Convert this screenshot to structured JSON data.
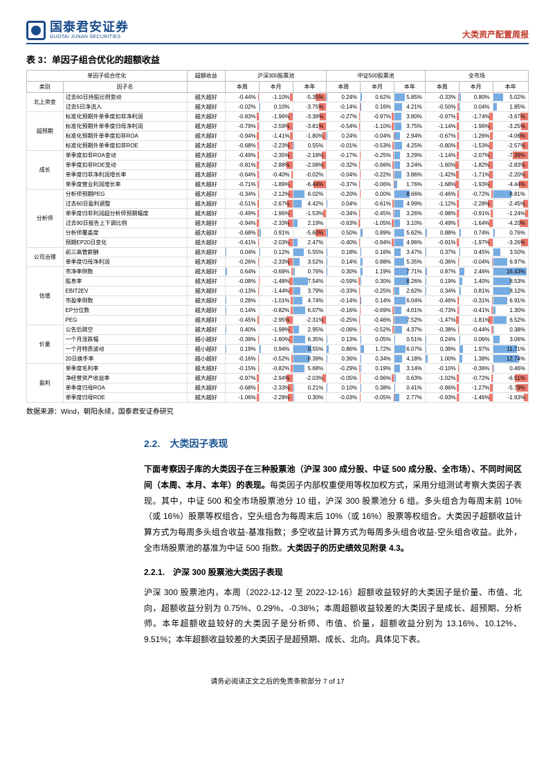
{
  "header": {
    "logo_cn": "国泰君安证券",
    "logo_en": "GUOTAI JUNAN SECURITIES",
    "report_type": "大类资产配置周报"
  },
  "table": {
    "title": "表 3：单因子组合优化的超额收益",
    "head1": [
      "单因子组合优化",
      "超额收益",
      "沪深300股票池",
      "中证500股票池",
      "全市场"
    ],
    "head2": [
      "类别",
      "因子名",
      "",
      "本周",
      "本月",
      "本年",
      "本周",
      "本月",
      "本年",
      "本周",
      "本月",
      "本年"
    ],
    "source": "数据来源：Wind，朝阳永续，国泰君安证券研究",
    "max_abs": 17,
    "cats": [
      {
        "name": "北上资金",
        "rows": [
          {
            "n": "过去60日持股比例变动",
            "d": "越大越好",
            "v": [
              -0.44,
              -1.1,
              -5.35,
              0.24,
              0.62,
              5.85,
              -0.33,
              0.8,
              5.02
            ]
          },
          {
            "n": "过去5日净流入",
            "d": "越大越好",
            "v": [
              -0.02,
              0.1,
              -3.75,
              -0.14,
              0.16,
              4.21,
              -0.5,
              0.04,
              1.85
            ]
          }
        ]
      },
      {
        "name": "超预期",
        "rows": [
          {
            "n": "标准化预期外单季度扣非净利润",
            "d": "越大越好",
            "v": [
              -0.83,
              -1.96,
              -3.38,
              -0.27,
              -0.97,
              3.8,
              -0.97,
              -1.74,
              -3.67
            ]
          },
          {
            "n": "标准化预期外单季度归母净利润",
            "d": "越大越好",
            "v": [
              -0.79,
              -2.59,
              -3.81,
              -0.54,
              -1.1,
              3.75,
              -1.14,
              -1.96,
              -3.25
            ]
          },
          {
            "n": "标准化预期外单季度扣非ROA",
            "d": "越大越好",
            "v": [
              -0.94,
              -1.41,
              -1.8,
              0.24,
              -0.04,
              2.94,
              -0.67,
              -1.26,
              -4.06
            ]
          },
          {
            "n": "标准化预期外单季度扣非ROE",
            "d": "越大越好",
            "v": [
              -0.68,
              -2.23,
              0.55,
              -0.01,
              -0.53,
              4.25,
              -0.8,
              -1.53,
              -2.57
            ]
          }
        ]
      },
      {
        "name": "成长",
        "rows": [
          {
            "n": "单季度扣非ROA变动",
            "d": "越大越好",
            "v": [
              -0.49,
              -2.35,
              -2.18,
              -0.17,
              -0.25,
              3.29,
              -1.14,
              -2.07,
              -7.39
            ]
          },
          {
            "n": "单季度扣非ROE变动",
            "d": "越大越好",
            "v": [
              -0.81,
              -2.88,
              -2.08,
              -0.32,
              -0.66,
              3.24,
              -1.6,
              -1.82,
              -2.83
            ]
          },
          {
            "n": "单季度归非净利润增长率",
            "d": "越大越好",
            "v": [
              -0.64,
              -0.4,
              -0.02,
              -0.04,
              -0.22,
              3.86,
              -1.42,
              -1.71,
              -2.2
            ]
          },
          {
            "n": "单季度营业利润增长率",
            "d": "越大越好",
            "v": [
              -0.71,
              -1.89,
              -6.44,
              -0.37,
              -0.06,
              1.76,
              -1.68,
              -1.93,
              -4.44
            ]
          }
        ]
      },
      {
        "name": "分析师",
        "rows": [
          {
            "n": "分析师预期PEG",
            "d": "越大越好",
            "v": [
              -0.34,
              -2.12,
              6.02,
              -0.2,
              0.0,
              8.66,
              -0.46,
              -0.72,
              8.81
            ]
          },
          {
            "n": "过去60日盈利调整",
            "d": "越大越好",
            "v": [
              -0.51,
              -2.67,
              4.42,
              0.04,
              -0.61,
              4.99,
              -1.12,
              -2.28,
              -2.45
            ]
          },
          {
            "n": "单季度归非利润超分析师预期幅度",
            "d": "越大越好",
            "v": [
              -0.49,
              -1.96,
              -1.53,
              -0.34,
              -0.45,
              3.26,
              -0.98,
              -0.91,
              -1.24
            ]
          },
          {
            "n": "过去90日报告上下调比例",
            "d": "越大越好",
            "v": [
              -0.94,
              -2.33,
              2.19,
              -0.63,
              -1.05,
              3.1,
              -0.49,
              -1.64,
              -4.2
            ]
          },
          {
            "n": "分析师覆盖度",
            "d": "越大越好",
            "v": [
              -0.68,
              0.91,
              -5.6,
              0.5,
              0.89,
              5.62,
              0.88,
              0.74,
              0.76
            ]
          },
          {
            "n": "预期EP20日变化",
            "d": "越大越好",
            "v": [
              -0.41,
              -2.03,
              2.47,
              -0.4,
              -0.94,
              4.96,
              -0.91,
              -1.97,
              -3.26
            ]
          }
        ]
      },
      {
        "name": "公司治理",
        "rows": [
          {
            "n": "前三高管薪酬",
            "d": "越大越好",
            "v": [
              0.04,
              0.12,
              5.55,
              0.18,
              0.16,
              3.47,
              0.37,
              0.45,
              3.5
            ]
          },
          {
            "n": "单季度归母净利润",
            "d": "越大越好",
            "v": [
              -0.26,
              -2.33,
              3.52,
              0.14,
              0.88,
              5.35,
              -0.36,
              -0.04,
              6.97
            ]
          }
        ]
      },
      {
        "name": "估值",
        "rows": [
          {
            "n": "市净率倒数",
            "d": "越大越好",
            "v": [
              0.64,
              -0.68,
              0.76,
              0.3,
              1.19,
              7.71,
              0.87,
              2.46,
              16.43
            ]
          },
          {
            "n": "股息率",
            "d": "越大越好",
            "v": [
              -0.08,
              -1.48,
              7.54,
              -0.59,
              0.3,
              8.26,
              0.19,
              1.4,
              8.53
            ]
          },
          {
            "n": "EBIT2EV",
            "d": "越大越好",
            "v": [
              -0.13,
              -1.44,
              3.79,
              -0.33,
              -0.25,
              2.62,
              0.34,
              0.81,
              8.12
            ]
          },
          {
            "n": "市盈率倒数",
            "d": "越大越好",
            "v": [
              0.28,
              -1.01,
              4.74,
              -0.14,
              0.14,
              6.04,
              -0.46,
              -0.31,
              6.91
            ]
          },
          {
            "n": "EP分位数",
            "d": "越大越好",
            "v": [
              0.14,
              -0.82,
              6.07,
              -0.16,
              -0.69,
              4.01,
              -0.73,
              -0.41,
              1.3
            ]
          },
          {
            "n": "PEG",
            "d": "越大越好",
            "v": [
              -0.45,
              -2.95,
              -2.31,
              -0.25,
              -0.46,
              7.52,
              -1.47,
              -1.81,
              6.52
            ]
          }
        ]
      },
      {
        "name": "价量",
        "rows": [
          {
            "n": "公告后跳空",
            "d": "越大越好",
            "v": [
              0.4,
              -1.98,
              2.95,
              -0.06,
              -0.52,
              4.37,
              -0.38,
              -0.44,
              0.38
            ]
          },
          {
            "n": "一个月涨跌幅",
            "d": "越小越好",
            "v": [
              -0.39,
              -1.6,
              6.35,
              0.13,
              0.05,
              0.51,
              0.24,
              0.06,
              3.06
            ]
          },
          {
            "n": "一个月特质波动",
            "d": "越小越好",
            "v": [
              0.19,
              0.94,
              9.55,
              0.86,
              1.72,
              6.07,
              0.39,
              1.97,
              11.71
            ]
          },
          {
            "n": "20日换手率",
            "d": "越小越好",
            "v": [
              -0.16,
              -0.52,
              8.39,
              0.36,
              0.34,
              4.18,
              1.0,
              1.38,
              12.74
            ]
          }
        ]
      },
      {
        "name": "盈利",
        "rows": [
          {
            "n": "单季度毛利率",
            "d": "越大越好",
            "v": [
              -0.15,
              -0.82,
              5.68,
              -0.29,
              0.19,
              3.14,
              -0.1,
              -0.36,
              0.46
            ]
          },
          {
            "n": "净经营资产收益率",
            "d": "越大越好",
            "v": [
              -0.97,
              -2.94,
              -2.03,
              -0.05,
              -0.96,
              0.63,
              -1.02,
              -0.72,
              -6.51
            ]
          },
          {
            "n": "单季度归母ROA",
            "d": "越大越好",
            "v": [
              -0.68,
              -2.33,
              0.21,
              0.1,
              0.38,
              0.41,
              -0.86,
              -1.27,
              -5.79
            ]
          },
          {
            "n": "单季度归母ROE",
            "d": "越大越好",
            "v": [
              -1.06,
              -2.28,
              0.3,
              -0.03,
              -0.05,
              2.77,
              -0.93,
              -1.46,
              -1.93
            ]
          }
        ]
      }
    ]
  },
  "sec": {
    "num": "2.2.　大类因子表现",
    "p1a": "下面考察因子库的大类因子在三种股票池（沪深 300 成分股、中证 500 成分股、全市场）、不同时间区间（本周、本月、本年）的表现。",
    "p1b": "每类因子内部权重使用等权加权方式，采用分组测试考察大类因子表现。其中，中证 500 和全市场股票池分 10 组，沪深 300 股票池分 6 组。多头组合为每周末前 10%（或 16%）股票等权组合，空头组合为每周末后 10%（或 16%）股票等权组合。大类因子超额收益计算方式为每周多头组合收益-基准指数；多空收益计算方式为每周多头组合收益-空头组合收益。此外，全市场股票池的基准为中证 500 指数。",
    "p1c": "大类因子的历史绩效见附录 4.3。",
    "sub": "2.2.1.　沪深 300 股票池大类因子表现",
    "p2": "沪深 300 股票池内，本周（2022-12-12 至 2022-12-16）超额收益较好的大类因子是价量、市值、北向，超额收益分别为 0.75%、0.29%、-0.38%；本周超额收益较差的大类因子是成长、超预期、分析师。本年超额收益较好的大类因子是分析师、市值、价量，超额收益分别为 13.16%、10.12%、9.51%；本年超额收益较差的大类因子是超预期、成长、北向。具体见下表。"
  },
  "footer": "请务必阅读正文之后的免责条款部分 7 of 17"
}
